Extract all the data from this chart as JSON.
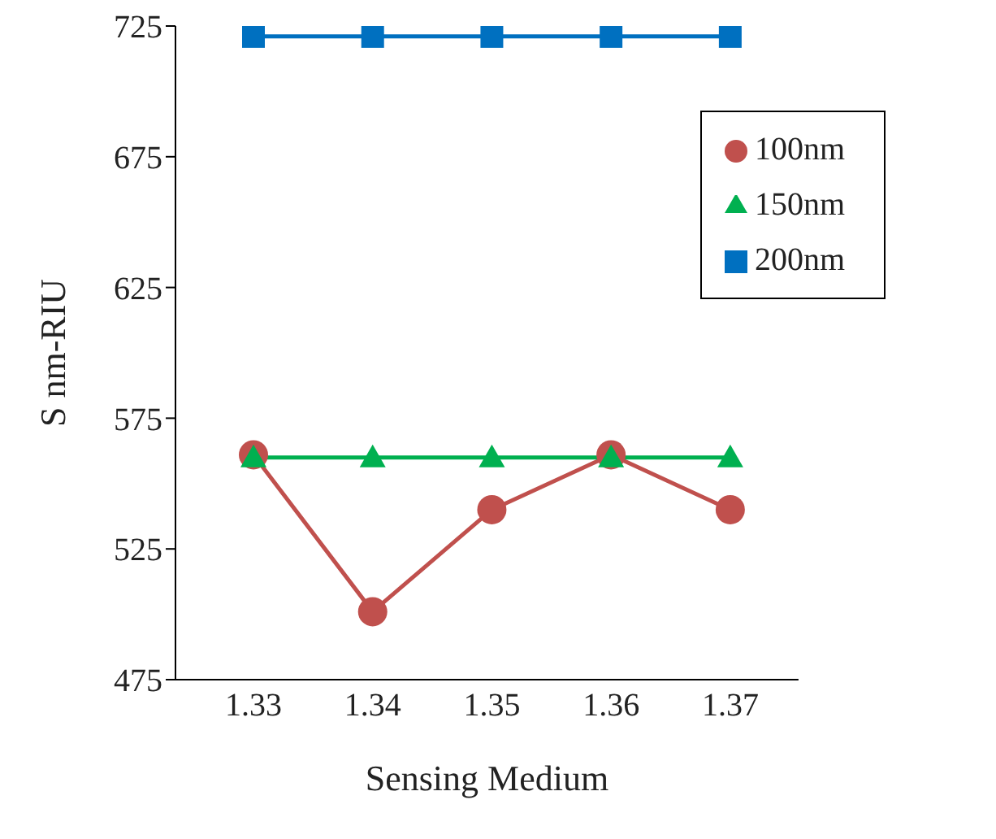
{
  "chart_data": {
    "type": "line",
    "xlabel": "Sensing Medium",
    "ylabel": "S nm-RIU",
    "categories": [
      "1.33",
      "1.34",
      "1.35",
      "1.36",
      "1.37"
    ],
    "series": [
      {
        "name": "100nm",
        "color": "#c0504d",
        "marker": "circle",
        "values": [
          561,
          501,
          540,
          561,
          540
        ]
      },
      {
        "name": "150nm",
        "color": "#00b050",
        "marker": "triangle",
        "values": [
          560,
          560,
          560,
          560,
          560
        ]
      },
      {
        "name": "200nm",
        "color": "#0070c0",
        "marker": "square",
        "values": [
          721,
          721,
          721,
          721,
          721
        ]
      }
    ],
    "ylim": [
      475,
      725
    ],
    "yticks": [
      475,
      525,
      575,
      625,
      675,
      725
    ],
    "grid": false,
    "legend": "top right"
  }
}
